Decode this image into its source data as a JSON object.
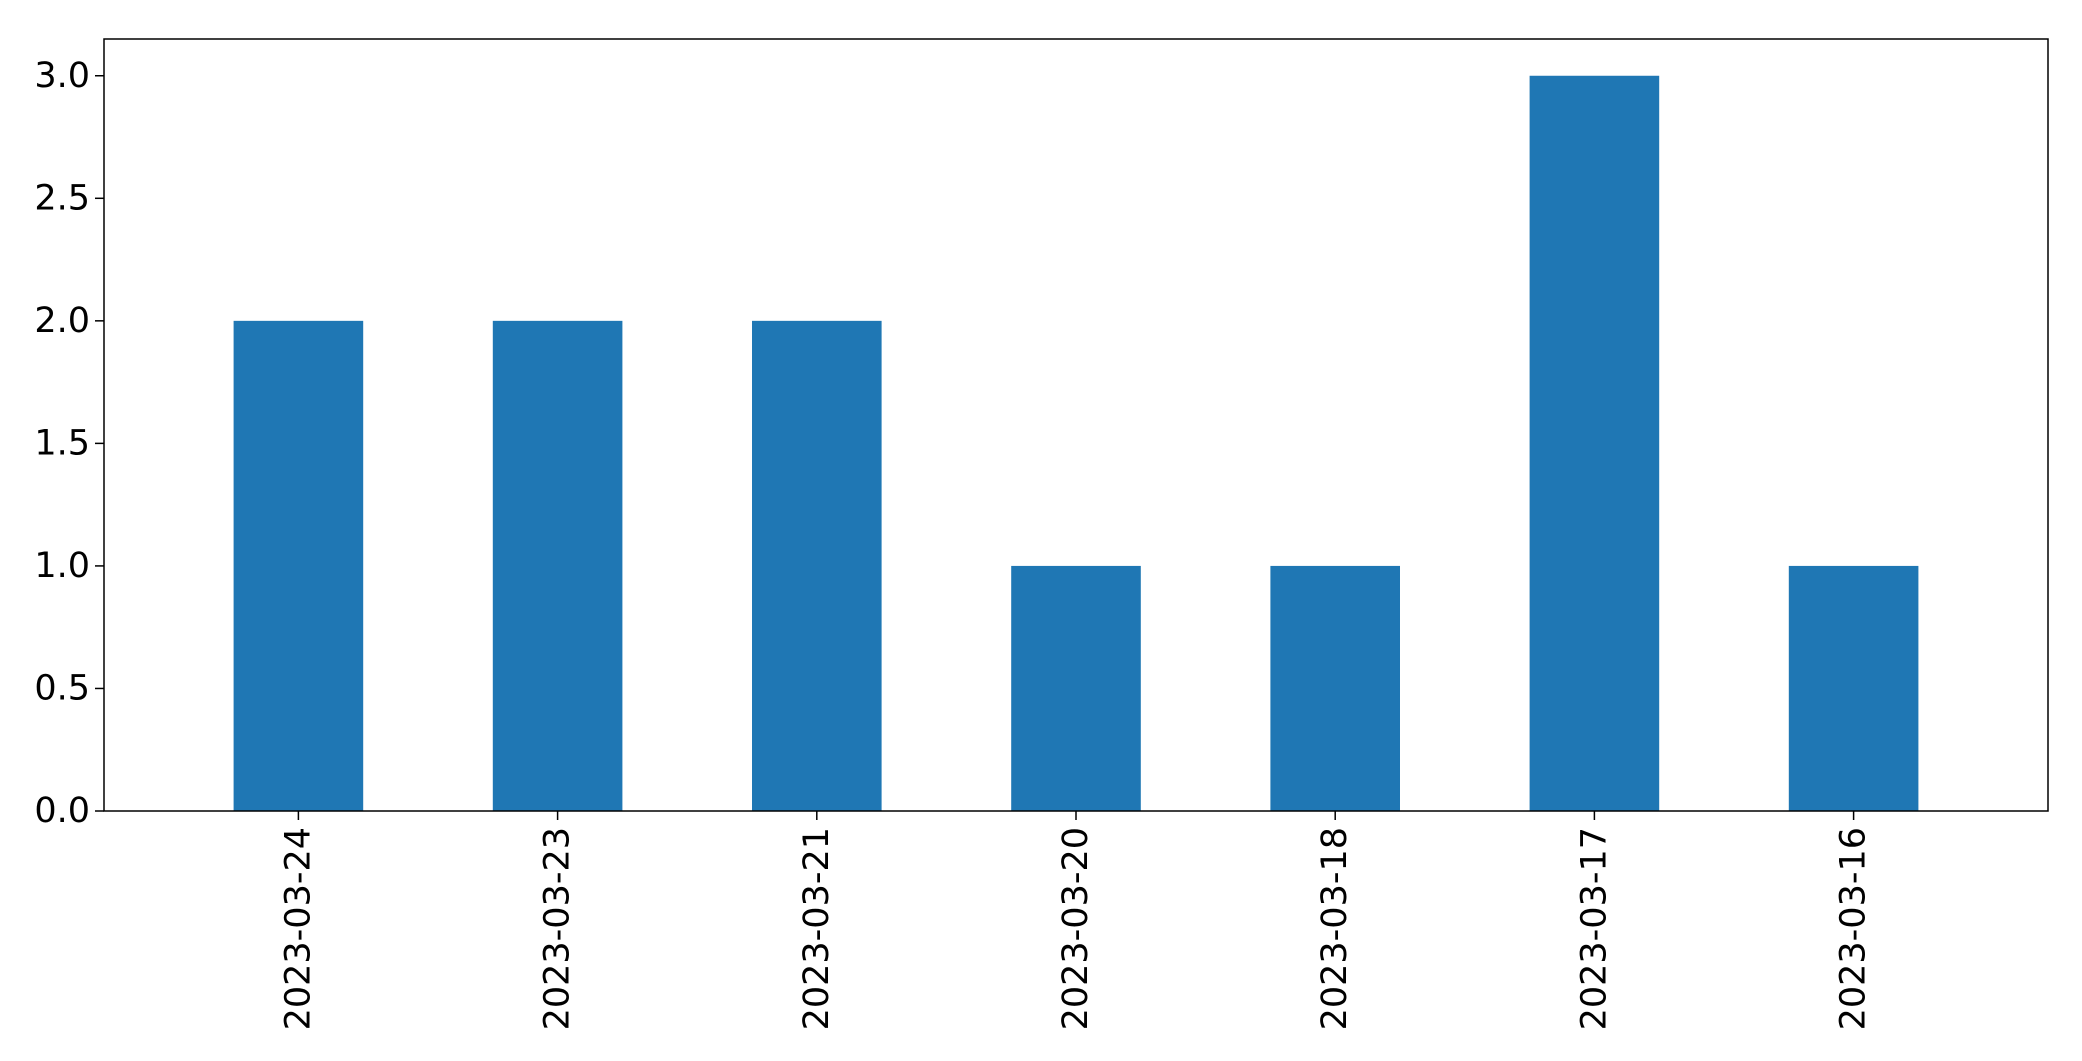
{
  "chart_data": {
    "type": "bar",
    "categories": [
      "2023-03-24",
      "2023-03-23",
      "2023-03-21",
      "2023-03-20",
      "2023-03-18",
      "2023-03-17",
      "2023-03-16"
    ],
    "values": [
      2,
      2,
      2,
      1,
      1,
      3,
      1
    ],
    "title": "",
    "xlabel": "",
    "ylabel": "",
    "ylim": [
      0,
      3.15
    ],
    "yticks": [
      "0.0",
      "0.5",
      "1.0",
      "1.5",
      "2.0",
      "2.5",
      "3.0"
    ],
    "grid": false,
    "legend": "none",
    "colors": {
      "bar": "#1f77b4",
      "axis": "#000000",
      "background": "#ffffff"
    }
  }
}
